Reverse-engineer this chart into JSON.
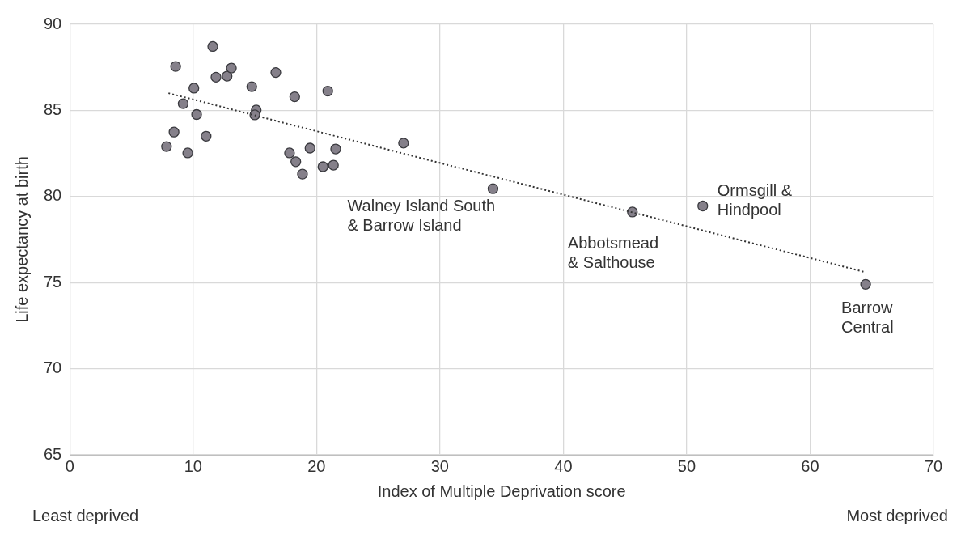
{
  "chart_data": {
    "type": "scatter",
    "xlabel": "Index of Multiple Deprivation score",
    "ylabel": "Life expectancy at birth",
    "xlim": [
      0,
      70
    ],
    "xticks": [
      0,
      10,
      20,
      30,
      40,
      50,
      60,
      70
    ],
    "ylim": [
      65,
      90
    ],
    "yticks": [
      65,
      70,
      75,
      80,
      85,
      90
    ],
    "grid": true,
    "marker": "circle",
    "series": [
      {
        "color": "#85808a",
        "x": [
          7.84,
          8.45,
          9.19,
          9.56,
          10.06,
          10.28,
          11.05,
          11.85,
          12.75,
          14.75,
          15.11,
          15.0,
          16.7,
          18.23,
          17.81,
          18.32,
          18.86,
          19.47,
          20.52,
          21.37,
          21.55,
          20.91,
          8.58,
          11.59,
          13.1,
          27.05,
          34.3,
          45.6,
          51.3,
          64.5
        ],
        "values": [
          82.9,
          83.74,
          85.39,
          82.53,
          86.29,
          84.76,
          83.5,
          86.93,
          86.99,
          86.38,
          85.02,
          84.74,
          87.2,
          85.79,
          82.53,
          82.02,
          81.3,
          82.81,
          81.73,
          81.82,
          82.76,
          86.12,
          87.55,
          88.71,
          87.46,
          83.1,
          80.45,
          79.1,
          79.45,
          74.9
        ]
      },
      {
        "type": "line",
        "color": "#333333",
        "line_style": "dotted",
        "marker": "none",
        "x": [
          8,
          64.5
        ],
        "values": [
          86.0,
          75.6
        ]
      }
    ],
    "annotations": [
      {
        "text": "Walney Island South\n& Barrow Island",
        "x": 34.3,
        "y": 80.45
      },
      {
        "text": "Abbotsmead\n& Salthouse",
        "x": 45.6,
        "y": 79.1
      },
      {
        "text": "Ormsgill &\nHindpool",
        "x": 51.3,
        "y": 79.45
      },
      {
        "text": "Barrow\nCentral",
        "x": 64.5,
        "y": 74.9
      },
      "Least deprived",
      "Most deprived"
    ]
  }
}
